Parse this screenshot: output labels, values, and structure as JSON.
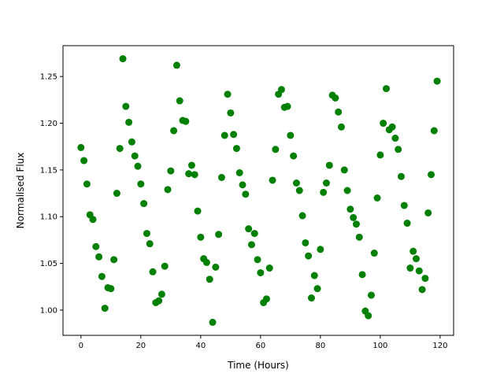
{
  "chart_data": {
    "type": "scatter",
    "title": "",
    "xlabel": "Time (Hours)",
    "ylabel": "Normalised Flux",
    "xlim": [
      -6,
      124.5
    ],
    "ylim": [
      0.973,
      1.283
    ],
    "xticks": [
      0,
      20,
      40,
      60,
      80,
      100,
      120
    ],
    "yticks": [
      "1.00",
      "1.05",
      "1.10",
      "1.15",
      "1.20",
      "1.25"
    ],
    "grid": false,
    "marker_color": "#008000",
    "x_start": 0,
    "y": [
      1.174,
      1.16,
      1.135,
      1.102,
      1.097,
      1.068,
      1.057,
      1.036,
      1.002,
      1.024,
      1.023,
      1.054,
      1.125,
      1.173,
      1.269,
      1.218,
      1.201,
      1.18,
      1.165,
      1.154,
      1.135,
      1.114,
      1.082,
      1.071,
      1.041,
      1.008,
      1.01,
      1.017,
      1.047,
      1.129,
      1.149,
      1.192,
      1.262,
      1.224,
      1.203,
      1.202,
      1.146,
      1.155,
      1.145,
      1.106,
      1.078,
      1.055,
      1.051,
      1.033,
      0.987,
      1.046,
      1.081,
      1.142,
      1.187,
      1.231,
      1.211,
      1.188,
      1.173,
      1.147,
      1.134,
      1.124,
      1.087,
      1.07,
      1.082,
      1.054,
      1.04,
      1.008,
      1.012,
      1.045,
      1.139,
      1.172,
      1.231,
      1.236,
      1.217,
      1.218,
      1.187,
      1.165,
      1.136,
      1.128,
      1.101,
      1.072,
      1.058,
      1.013,
      1.037,
      1.023,
      1.065,
      1.126,
      1.136,
      1.155,
      1.23,
      1.227,
      1.212,
      1.196,
      1.15,
      1.128,
      1.108,
      1.099,
      1.092,
      1.078,
      1.038,
      0.999,
      0.994,
      1.016,
      1.061,
      1.12,
      1.166,
      1.2,
      1.237,
      1.193,
      1.196,
      1.184,
      1.172,
      1.143,
      1.112,
      1.093,
      1.045,
      1.063,
      1.055,
      1.042,
      1.022,
      1.034,
      1.104,
      1.145,
      1.192,
      1.245
    ]
  }
}
